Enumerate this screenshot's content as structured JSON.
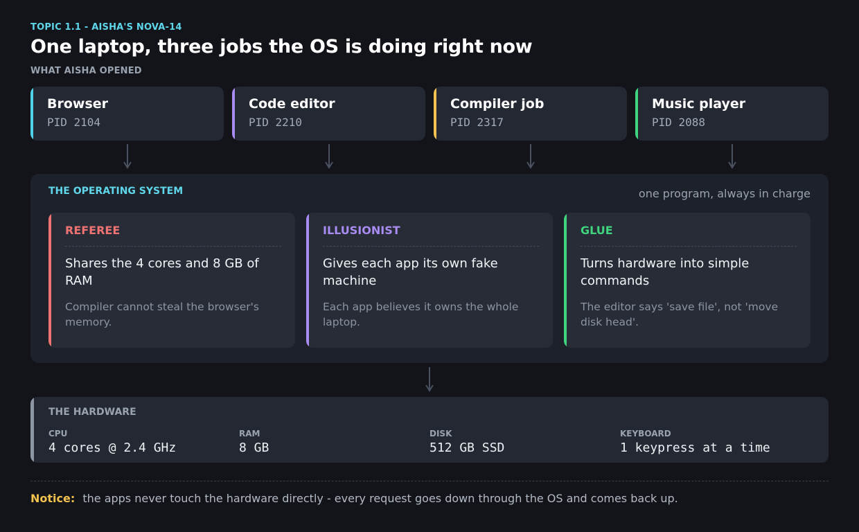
{
  "header": {
    "eyebrow": "TOPIC 1.1  -  AISHA'S NOVA-14",
    "title": "One laptop, three jobs the OS is doing right now",
    "section_label": "WHAT AISHA OPENED"
  },
  "apps": [
    {
      "name": "Browser",
      "pid": "PID 2104",
      "color": "#4fd3e8"
    },
    {
      "name": "Code editor",
      "pid": "PID 2210",
      "color": "#a98cf2"
    },
    {
      "name": "Compiler job",
      "pid": "PID 2317",
      "color": "#f2c14e"
    },
    {
      "name": "Music player",
      "pid": "PID 2088",
      "color": "#3fd47e"
    }
  ],
  "os": {
    "title": "THE OPERATING SYSTEM",
    "tagline": "one program, always in charge",
    "roles": [
      {
        "name": "REFEREE",
        "color": "#f07373",
        "headline": "Shares the 4 cores and 8 GB of RAM",
        "detail": "Compiler cannot steal the browser's memory."
      },
      {
        "name": "ILLUSIONIST",
        "color": "#a98cf2",
        "headline": "Gives each app its own fake machine",
        "detail": "Each app believes it owns the whole laptop."
      },
      {
        "name": "GLUE",
        "color": "#3fd47e",
        "headline": "Turns hardware into simple commands",
        "detail": "The editor says 'save file', not 'move disk head'."
      }
    ]
  },
  "hardware": {
    "title": "THE HARDWARE",
    "items": [
      {
        "label": "CPU",
        "value": "4 cores @ 2.4 GHz"
      },
      {
        "label": "RAM",
        "value": "8 GB"
      },
      {
        "label": "DISK",
        "value": "512 GB SSD"
      },
      {
        "label": "KEYBOARD",
        "value": "1 keypress at a time"
      }
    ]
  },
  "notice": {
    "label": "Notice:",
    "text": "the apps never touch the hardware directly - every request goes down through the OS and comes back up."
  },
  "colors": {
    "accent": "#5fd6ea",
    "arrow": "#4a5261",
    "hardware_bar": "#8c95a3",
    "notice_label": "#f2c14e"
  }
}
